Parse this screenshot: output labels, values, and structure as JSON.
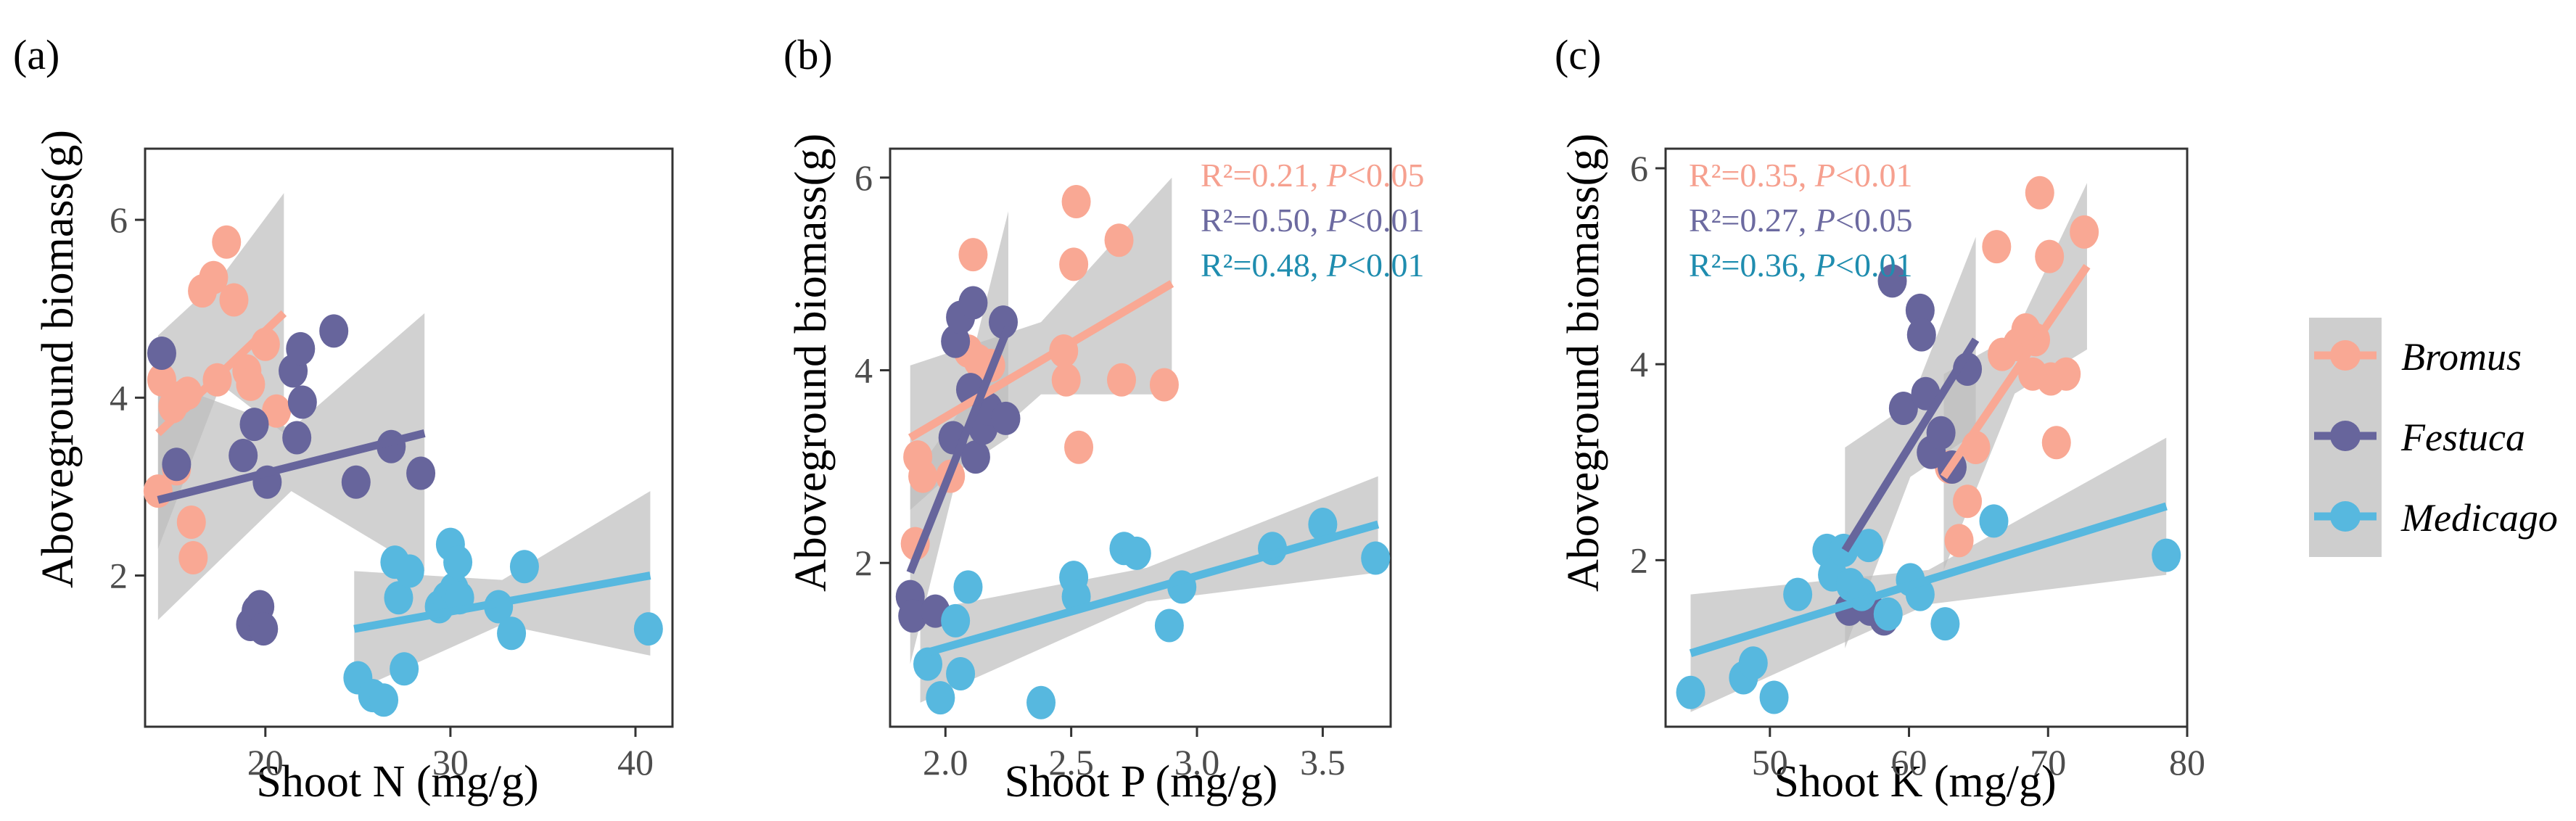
{
  "chart_data": [
    {
      "type": "scatter",
      "panel_label": "(a)",
      "xlabel": "Shoot N (mg/g)",
      "ylabel": "Aboveground biomass(g)",
      "xlim": [
        13.5,
        42
      ],
      "ylim": [
        0.3,
        6.8
      ],
      "xticks": [
        20,
        30,
        40
      ],
      "yticks": [
        2,
        4,
        6
      ],
      "annotations": [],
      "series": [
        {
          "name": "Bromus",
          "points": [
            [
              14.2,
              2.95
            ],
            [
              14.4,
              4.2
            ],
            [
              15.0,
              3.9
            ],
            [
              15.2,
              3.2
            ],
            [
              15.4,
              4.0
            ],
            [
              15.8,
              4.05
            ],
            [
              16.0,
              2.6
            ],
            [
              16.1,
              2.2
            ],
            [
              16.6,
              5.2
            ],
            [
              17.2,
              5.35
            ],
            [
              17.4,
              4.2
            ],
            [
              17.9,
              5.75
            ],
            [
              18.3,
              5.1
            ],
            [
              19.0,
              4.3
            ],
            [
              19.2,
              4.15
            ],
            [
              20.0,
              4.6
            ],
            [
              20.6,
              3.85
            ]
          ],
          "fit": {
            "x": [
              14.2,
              21.0
            ],
            "y": [
              3.6,
              4.95
            ]
          },
          "ci": {
            "x": [
              14.2,
              17.6,
              21.0
            ],
            "lower": [
              2.3,
              4.15,
              3.6
            ],
            "upper": [
              4.7,
              5.35,
              6.3
            ]
          }
        },
        {
          "name": "Festuca",
          "points": [
            [
              14.4,
              4.5
            ],
            [
              15.2,
              3.25
            ],
            [
              18.8,
              3.35
            ],
            [
              19.2,
              1.45
            ],
            [
              19.4,
              3.7
            ],
            [
              19.5,
              1.6
            ],
            [
              19.7,
              1.65
            ],
            [
              19.9,
              1.4
            ],
            [
              20.1,
              3.05
            ],
            [
              21.5,
              4.3
            ],
            [
              21.7,
              3.55
            ],
            [
              21.9,
              4.55
            ],
            [
              22.0,
              3.95
            ],
            [
              23.7,
              4.75
            ],
            [
              24.9,
              3.05
            ],
            [
              26.8,
              3.45
            ],
            [
              28.4,
              3.15
            ]
          ],
          "fit": {
            "x": [
              14.2,
              28.6
            ],
            "y": [
              2.85,
              3.6
            ]
          },
          "ci": {
            "x": [
              14.2,
              21.4,
              28.6
            ],
            "lower": [
              1.5,
              2.95,
              2.05
            ],
            "upper": [
              4.2,
              3.65,
              4.95
            ]
          }
        },
        {
          "name": "Medicago",
          "points": [
            [
              25.0,
              0.85
            ],
            [
              25.8,
              0.65
            ],
            [
              26.4,
              0.6
            ],
            [
              27.0,
              2.15
            ],
            [
              27.2,
              1.75
            ],
            [
              27.5,
              0.95
            ],
            [
              27.8,
              2.05
            ],
            [
              29.4,
              1.65
            ],
            [
              29.8,
              1.75
            ],
            [
              30.0,
              2.35
            ],
            [
              30.2,
              1.85
            ],
            [
              30.4,
              2.15
            ],
            [
              30.5,
              1.75
            ],
            [
              32.6,
              1.65
            ],
            [
              33.3,
              1.35
            ],
            [
              34.0,
              2.1
            ],
            [
              40.7,
              1.4
            ]
          ],
          "fit": {
            "x": [
              24.8,
              40.8
            ],
            "y": [
              1.4,
              2.0
            ]
          },
          "ci": {
            "x": [
              24.8,
              32.8,
              40.8
            ],
            "lower": [
              0.7,
              1.45,
              1.1
            ],
            "upper": [
              2.05,
              1.95,
              2.95
            ]
          }
        }
      ]
    },
    {
      "type": "scatter",
      "panel_label": "(b)",
      "xlabel": "Shoot P (mg/g)",
      "ylabel": "Aboveground biomass(g)",
      "xlim": [
        1.78,
        3.77
      ],
      "ylim": [
        0.3,
        6.3
      ],
      "xticks": [
        2.0,
        2.5,
        3.0,
        3.5
      ],
      "xtick_labels": [
        "2.0",
        "2.5",
        "3.0",
        "3.5"
      ],
      "yticks": [
        2,
        4,
        6
      ],
      "annotations": [
        {
          "series": "Bromus",
          "r2": "R²=0.21, ",
          "p": "P",
          "sig": "<0.05"
        },
        {
          "series": "Festuca",
          "r2": "R²=0.50, ",
          "p": "P",
          "sig": "<0.01"
        },
        {
          "series": "Medicago",
          "r2": "R²=0.48, ",
          "p": "P",
          "sig": "<0.01"
        }
      ],
      "series": [
        {
          "name": "Bromus",
          "points": [
            [
              1.88,
              2.2
            ],
            [
              1.89,
              3.1
            ],
            [
              1.91,
              2.9
            ],
            [
              2.02,
              2.9
            ],
            [
              2.09,
              4.2
            ],
            [
              2.11,
              5.2
            ],
            [
              2.13,
              4.1
            ],
            [
              2.18,
              4.05
            ],
            [
              2.47,
              4.2
            ],
            [
              2.48,
              3.9
            ],
            [
              2.51,
              5.1
            ],
            [
              2.52,
              5.75
            ],
            [
              2.53,
              3.2
            ],
            [
              2.69,
              5.35
            ],
            [
              2.7,
              3.9
            ],
            [
              2.87,
              3.85
            ]
          ],
          "fit": {
            "x": [
              1.86,
              2.9
            ],
            "y": [
              3.3,
              4.9
            ]
          },
          "ci": {
            "x": [
              1.86,
              2.38,
              2.9
            ],
            "lower": [
              2.55,
              3.75,
              3.75
            ],
            "upper": [
              4.05,
              4.5,
              6.0
            ]
          }
        },
        {
          "name": "Festuca",
          "points": [
            [
              1.86,
              1.65
            ],
            [
              1.87,
              1.45
            ],
            [
              1.96,
              1.5
            ],
            [
              2.03,
              3.3
            ],
            [
              2.04,
              4.3
            ],
            [
              2.06,
              4.55
            ],
            [
              2.1,
              3.8
            ],
            [
              2.11,
              4.7
            ],
            [
              2.12,
              3.1
            ],
            [
              2.15,
              3.4
            ],
            [
              2.17,
              3.6
            ],
            [
              2.23,
              4.5
            ],
            [
              2.24,
              3.5
            ]
          ],
          "fit": {
            "x": [
              1.86,
              2.25
            ],
            "y": [
              1.9,
              4.45
            ]
          },
          "ci": {
            "x": [
              1.86,
              2.05,
              2.25
            ],
            "lower": [
              0.95,
              2.95,
              3.3
            ],
            "upper": [
              2.85,
              3.55,
              5.65
            ]
          }
        },
        {
          "name": "Medicago",
          "points": [
            [
              1.93,
              0.95
            ],
            [
              1.98,
              0.6
            ],
            [
              2.04,
              1.4
            ],
            [
              2.06,
              0.85
            ],
            [
              2.09,
              1.75
            ],
            [
              2.38,
              0.55
            ],
            [
              2.51,
              1.85
            ],
            [
              2.52,
              1.65
            ],
            [
              2.71,
              2.15
            ],
            [
              2.76,
              2.1
            ],
            [
              2.89,
              1.35
            ],
            [
              2.94,
              1.75
            ],
            [
              3.3,
              2.15
            ],
            [
              3.5,
              2.4
            ],
            [
              3.71,
              2.05
            ]
          ],
          "fit": {
            "x": [
              1.9,
              3.72
            ],
            "y": [
              1.05,
              2.4
            ]
          },
          "ci": {
            "x": [
              1.9,
              2.8,
              3.72
            ],
            "lower": [
              0.55,
              1.6,
              1.9
            ],
            "upper": [
              1.5,
              1.95,
              2.9
            ]
          }
        }
      ]
    },
    {
      "type": "scatter",
      "panel_label": "(c)",
      "xlabel": "Shoot K (mg/g)",
      "ylabel": "Aboveground biomass(g)",
      "xlim": [
        42.5,
        80
      ],
      "ylim": [
        0.3,
        6.2
      ],
      "xticks": [
        50,
        60,
        70,
        80
      ],
      "yticks": [
        2,
        4,
        6
      ],
      "annotations": [
        {
          "series": "Bromus",
          "r2": "R²=0.35, ",
          "p": "P",
          "sig": "<0.01"
        },
        {
          "series": "Festuca",
          "r2": "R²=0.27, ",
          "p": "P",
          "sig": "<0.05"
        },
        {
          "series": "Medicago",
          "r2": "R²=0.36, ",
          "p": "P",
          "sig": "<0.01"
        }
      ],
      "series": [
        {
          "name": "Bromus",
          "points": [
            [
              62.9,
              2.95
            ],
            [
              63.6,
              2.2
            ],
            [
              64.2,
              2.6
            ],
            [
              64.8,
              3.15
            ],
            [
              66.3,
              5.2
            ],
            [
              66.7,
              4.1
            ],
            [
              67.8,
              4.2
            ],
            [
              68.4,
              4.35
            ],
            [
              68.9,
              3.9
            ],
            [
              69.1,
              4.25
            ],
            [
              69.4,
              5.75
            ],
            [
              70.1,
              5.1
            ],
            [
              70.2,
              3.85
            ],
            [
              70.6,
              3.2
            ],
            [
              71.3,
              3.9
            ],
            [
              72.6,
              5.35
            ]
          ],
          "fit": {
            "x": [
              62.5,
              72.8
            ],
            "y": [
              2.85,
              5.0
            ]
          },
          "ci": {
            "x": [
              62.5,
              67.6,
              72.8
            ],
            "lower": [
              1.9,
              3.7,
              4.15
            ],
            "upper": [
              3.9,
              4.3,
              5.85
            ]
          }
        },
        {
          "name": "Festuca",
          "points": [
            [
              55.7,
              1.5
            ],
            [
              57.2,
              1.5
            ],
            [
              58.2,
              1.4
            ],
            [
              58.8,
              4.85
            ],
            [
              59.6,
              3.55
            ],
            [
              60.8,
              4.55
            ],
            [
              60.9,
              4.3
            ],
            [
              61.2,
              3.7
            ],
            [
              61.6,
              3.1
            ],
            [
              62.3,
              3.3
            ],
            [
              63.1,
              2.95
            ],
            [
              64.2,
              3.95
            ]
          ],
          "fit": {
            "x": [
              55.4,
              64.8
            ],
            "y": [
              2.1,
              4.25
            ]
          },
          "ci": {
            "x": [
              55.4,
              60.1,
              64.8
            ],
            "lower": [
              1.1,
              2.85,
              3.3
            ],
            "upper": [
              3.15,
              3.6,
              5.3
            ]
          }
        },
        {
          "name": "Medicago",
          "points": [
            [
              44.3,
              0.65
            ],
            [
              48.1,
              0.8
            ],
            [
              48.8,
              0.95
            ],
            [
              50.3,
              0.6
            ],
            [
              52.0,
              1.65
            ],
            [
              54.1,
              2.1
            ],
            [
              54.5,
              1.85
            ],
            [
              55.3,
              2.1
            ],
            [
              55.8,
              1.75
            ],
            [
              56.6,
              1.65
            ],
            [
              57.1,
              2.15
            ],
            [
              58.5,
              1.45
            ],
            [
              60.1,
              1.8
            ],
            [
              60.8,
              1.65
            ],
            [
              62.6,
              1.35
            ],
            [
              66.1,
              2.4
            ],
            [
              78.5,
              2.05
            ]
          ],
          "fit": {
            "x": [
              44.3,
              78.5
            ],
            "y": [
              1.05,
              2.55
            ]
          },
          "ci": {
            "x": [
              44.3,
              61.4,
              78.5
            ],
            "lower": [
              0.45,
              1.55,
              1.85
            ],
            "upper": [
              1.65,
              1.9,
              3.25
            ]
          }
        }
      ]
    }
  ],
  "legend": {
    "placement": "right",
    "items": [
      {
        "name": "Bromus",
        "label": "Bromus"
      },
      {
        "name": "Festuca",
        "label": "Festuca"
      },
      {
        "name": "Medicago",
        "label": "Medicago"
      }
    ]
  },
  "colors": {
    "Bromus": "#F9A894",
    "Festuca": "#67659C",
    "Medicago": "#57B8DF",
    "Bromus_text": "#F6A08F",
    "Festuca_text": "#6C6AA0",
    "Medicago_text": "#1F8DAF",
    "ci_band": "#BEBEBE",
    "axis": "#333333",
    "tick_text": "#4D4D4D"
  }
}
